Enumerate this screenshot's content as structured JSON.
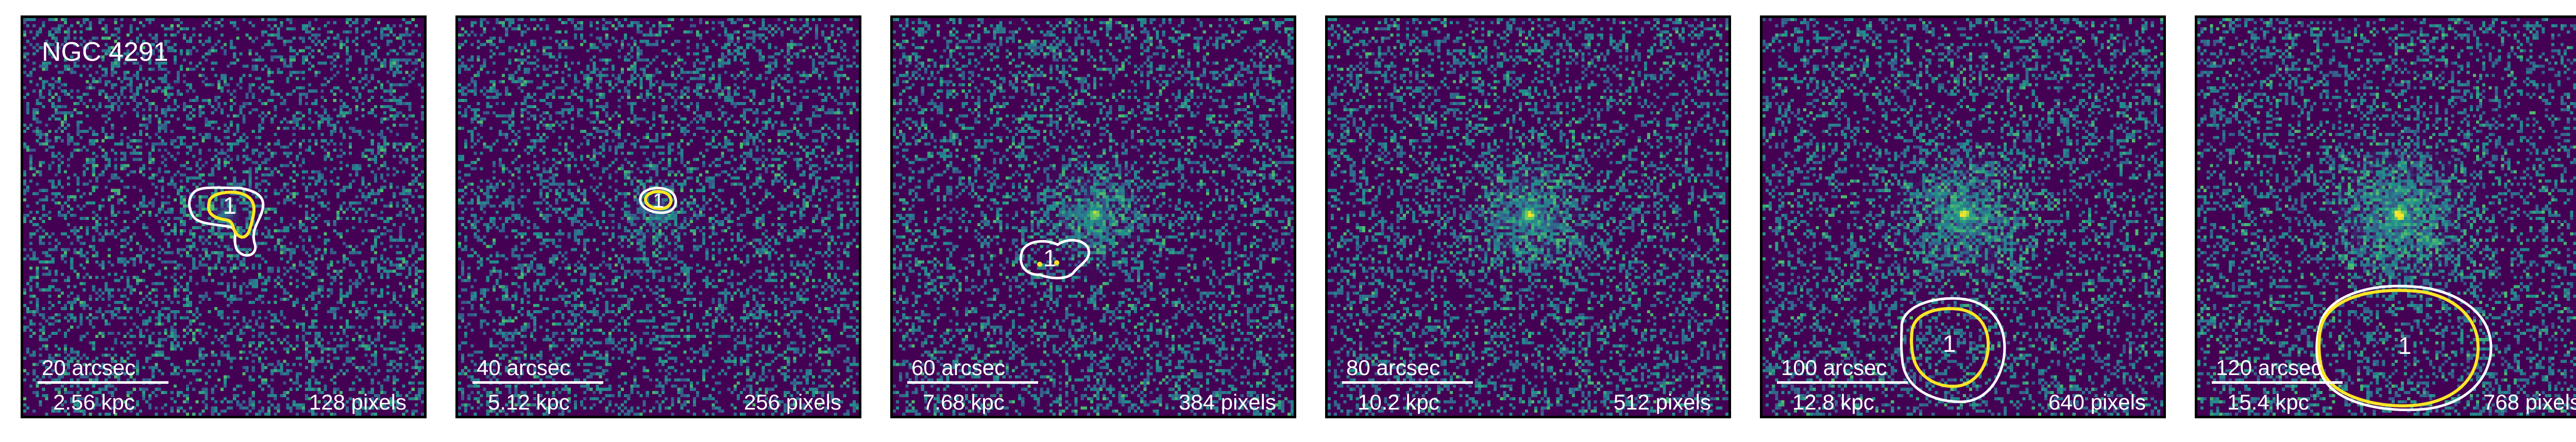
{
  "figure": {
    "galaxy_name": "NGC 4291",
    "panels": [
      {
        "arcsec": "20 arcsec",
        "kpc": "2.56 kpc",
        "pixels": "128 pixels",
        "region_label": "1"
      },
      {
        "arcsec": "40 arcsec",
        "kpc": "5.12 kpc",
        "pixels": "256 pixels",
        "region_label": "1"
      },
      {
        "arcsec": "60 arcsec",
        "kpc": "7.68 kpc",
        "pixels": "384 pixels",
        "region_label": "1"
      },
      {
        "arcsec": "80 arcsec",
        "kpc": "10.2 kpc",
        "pixels": "512 pixels",
        "region_label": ""
      },
      {
        "arcsec": "100 arcsec",
        "kpc": "12.8 kpc",
        "pixels": "640 pixels",
        "region_label": "1"
      },
      {
        "arcsec": "120 arcsec",
        "kpc": "15.4 kpc",
        "pixels": "768 pixels",
        "region_label": "1"
      }
    ]
  },
  "colors": {
    "background": "#440154",
    "contour_inner": "#fde725",
    "contour_outer": "#ffffff",
    "colormap": "viridis"
  }
}
